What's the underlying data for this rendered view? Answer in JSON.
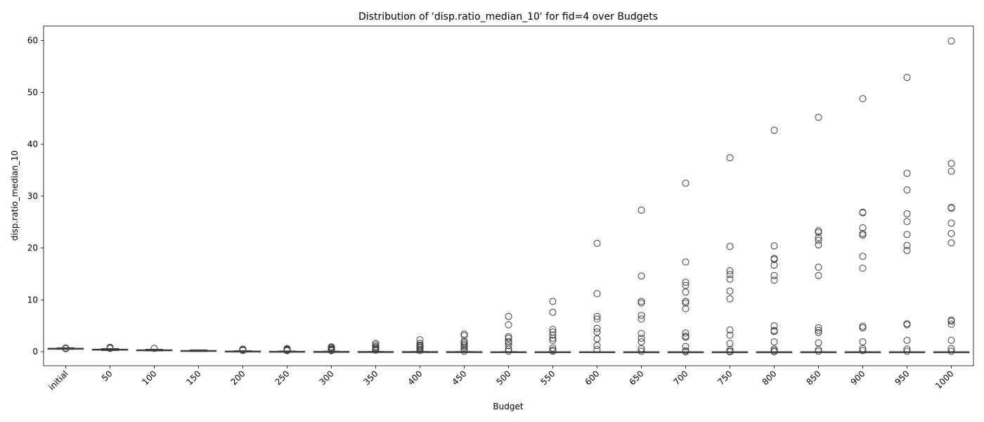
{
  "chart_data": {
    "type": "box",
    "title": "Distribution of 'disp.ratio_median_10' for fid=4 over Budgets",
    "xlabel": "Budget",
    "ylabel": "disp.ratio_median_10",
    "ylim": [
      -2.7,
      62.8
    ],
    "yticks": [
      0,
      10,
      20,
      30,
      40,
      50,
      60
    ],
    "categories": [
      "initial",
      "50",
      "100",
      "150",
      "200",
      "250",
      "300",
      "350",
      "400",
      "450",
      "500",
      "550",
      "600",
      "650",
      "700",
      "750",
      "800",
      "850",
      "900",
      "950",
      "1000"
    ],
    "boxes": [
      {
        "q1": 0.55,
        "median": 0.62,
        "q3": 0.68,
        "whisker_low": 0.45,
        "whisker_high": 0.78
      },
      {
        "q1": 0.3,
        "median": 0.42,
        "q3": 0.5,
        "whisker_low": 0.22,
        "whisker_high": 0.62
      },
      {
        "q1": 0.22,
        "median": 0.3,
        "q3": 0.38,
        "whisker_low": 0.14,
        "whisker_high": 0.48
      },
      {
        "q1": 0.1,
        "median": 0.18,
        "q3": 0.25,
        "whisker_low": 0.04,
        "whisker_high": 0.36
      },
      {
        "q1": 0.04,
        "median": 0.08,
        "q3": 0.13,
        "whisker_low": 0.0,
        "whisker_high": 0.2
      },
      {
        "q1": 0.02,
        "median": 0.05,
        "q3": 0.09,
        "whisker_low": 0.0,
        "whisker_high": 0.15
      },
      {
        "q1": 0.01,
        "median": 0.03,
        "q3": 0.06,
        "whisker_low": 0.0,
        "whisker_high": 0.11
      },
      {
        "q1": 0.0,
        "median": 0.02,
        "q3": 0.04,
        "whisker_low": 0.0,
        "whisker_high": 0.08
      },
      {
        "q1": 0.0,
        "median": 0.01,
        "q3": 0.03,
        "whisker_low": 0.0,
        "whisker_high": 0.06
      },
      {
        "q1": 0.0,
        "median": 0.01,
        "q3": 0.02,
        "whisker_low": 0.0,
        "whisker_high": 0.04
      },
      {
        "q1": 0.0,
        "median": 0.0,
        "q3": 0.01,
        "whisker_low": 0.0,
        "whisker_high": 0.03
      },
      {
        "q1": 0.0,
        "median": 0.0,
        "q3": 0.01,
        "whisker_low": 0.0,
        "whisker_high": 0.02
      },
      {
        "q1": 0.0,
        "median": 0.0,
        "q3": 0.01,
        "whisker_low": 0.0,
        "whisker_high": 0.02
      },
      {
        "q1": 0.0,
        "median": 0.0,
        "q3": 0.0,
        "whisker_low": 0.0,
        "whisker_high": 0.01
      },
      {
        "q1": 0.0,
        "median": 0.0,
        "q3": 0.0,
        "whisker_low": 0.0,
        "whisker_high": 0.01
      },
      {
        "q1": 0.0,
        "median": 0.0,
        "q3": 0.0,
        "whisker_low": 0.0,
        "whisker_high": 0.01
      },
      {
        "q1": 0.0,
        "median": 0.0,
        "q3": 0.0,
        "whisker_low": 0.0,
        "whisker_high": 0.01
      },
      {
        "q1": 0.0,
        "median": 0.0,
        "q3": 0.0,
        "whisker_low": 0.0,
        "whisker_high": 0.01
      },
      {
        "q1": 0.0,
        "median": 0.0,
        "q3": 0.0,
        "whisker_low": 0.0,
        "whisker_high": 0.01
      },
      {
        "q1": 0.0,
        "median": 0.0,
        "q3": 0.0,
        "whisker_low": 0.0,
        "whisker_high": 0.01
      },
      {
        "q1": 0.0,
        "median": 0.0,
        "q3": 0.0,
        "whisker_low": 0.0,
        "whisker_high": 0.01
      }
    ],
    "outliers": [
      [
        0.6,
        0.7
      ],
      [
        0.7,
        0.85,
        0.65
      ],
      [
        0.65
      ],
      [],
      [
        0.5,
        0.35,
        0.3,
        0.25
      ],
      [
        0.6,
        0.5,
        0.4,
        0.3,
        0.2
      ],
      [
        0.95,
        0.8,
        0.6,
        0.45,
        0.3,
        0.2
      ],
      [
        1.6,
        1.3,
        1.0,
        0.8,
        0.6,
        0.4,
        0.3
      ],
      [
        2.3,
        1.6,
        1.3,
        1.1,
        0.9,
        0.7,
        0.4,
        0.2
      ],
      [
        3.4,
        3.1,
        2.0,
        1.7,
        1.4,
        1.1,
        0.8,
        0.4,
        0.1
      ],
      [
        6.8,
        5.2,
        2.9,
        2.6,
        2.0,
        1.7,
        1.2,
        0.5,
        0.1
      ],
      [
        9.7,
        7.6,
        4.3,
        3.8,
        3.2,
        2.6,
        2.2,
        0.7,
        0.3,
        0.1
      ],
      [
        20.9,
        11.2,
        6.8,
        6.3,
        4.5,
        3.8,
        2.5,
        1.2,
        0.4
      ],
      [
        27.3,
        14.6,
        9.7,
        9.4,
        7.0,
        6.3,
        3.5,
        2.6,
        1.9,
        0.6,
        0.1
      ],
      [
        32.5,
        17.3,
        13.4,
        12.8,
        11.5,
        9.7,
        9.4,
        8.3,
        3.6,
        3.0,
        2.8,
        1.0,
        0.2,
        0.0
      ],
      [
        37.4,
        20.3,
        15.6,
        14.9,
        14.0,
        11.7,
        10.2,
        4.2,
        3.2,
        1.6,
        0.4,
        0.1,
        0.0
      ],
      [
        42.7,
        20.4,
        18.0,
        17.8,
        16.7,
        14.7,
        13.8,
        5.0,
        4.1,
        3.9,
        1.9,
        0.5,
        0.2,
        0.0
      ],
      [
        45.2,
        23.3,
        23.0,
        22.0,
        21.5,
        20.6,
        16.3,
        14.7,
        4.6,
        4.1,
        3.7,
        1.7,
        0.4,
        0.1
      ],
      [
        48.8,
        26.9,
        26.8,
        23.9,
        22.8,
        22.5,
        18.4,
        16.1,
        4.9,
        4.6,
        1.9,
        0.6,
        0.2
      ],
      [
        52.9,
        34.4,
        31.2,
        26.6,
        25.1,
        22.6,
        20.5,
        19.5,
        5.4,
        5.2,
        2.2,
        0.5,
        0.1
      ],
      [
        59.9,
        36.3,
        34.8,
        27.8,
        27.7,
        24.8,
        22.8,
        21.0,
        6.1,
        5.9,
        5.3,
        2.2,
        0.6,
        0.1
      ]
    ],
    "grid": false,
    "colors": {
      "box_fill": "#3274a1",
      "line": "#3d3d3d",
      "outlier_edge": "#3d3d3d",
      "axis": "#000000"
    }
  }
}
